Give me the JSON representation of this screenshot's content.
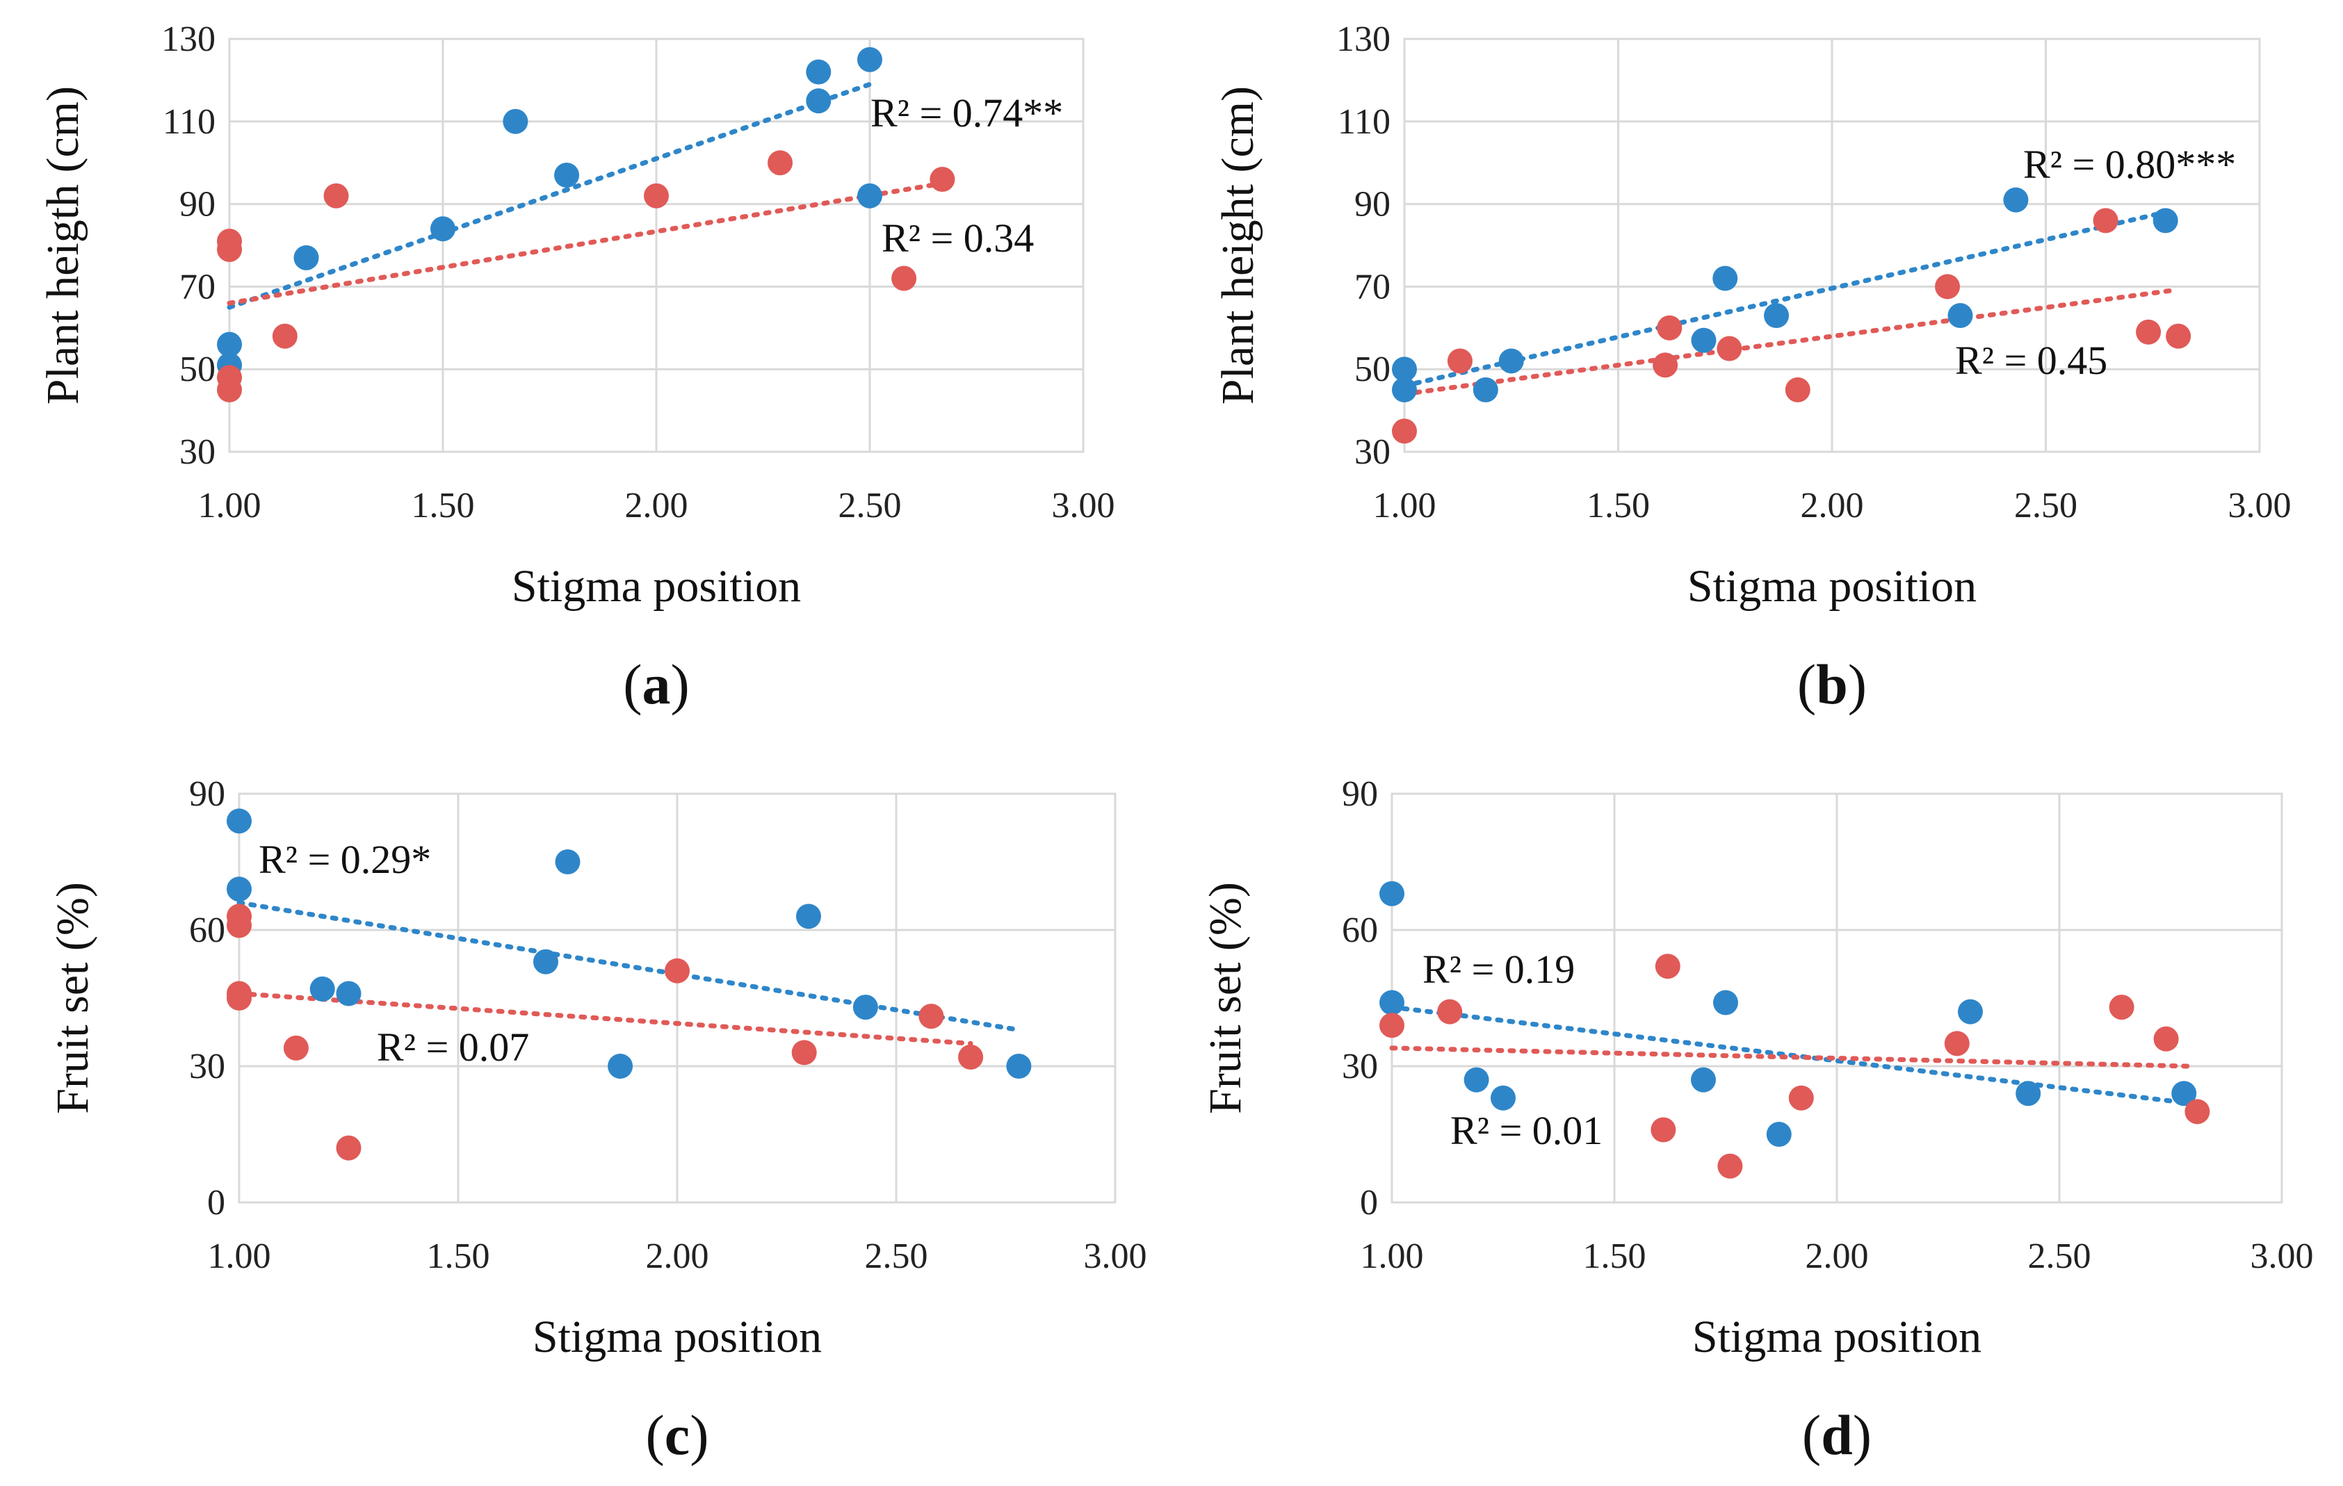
{
  "colors": {
    "blue": "#2e86c9",
    "red": "#e05a57"
  },
  "chart_data": [
    {
      "id": "a",
      "type": "scatter",
      "panel_label": "a",
      "xlabel": "Stigma position",
      "ylabel": "Plant heigth (cm)",
      "xlim": [
        1.0,
        3.0
      ],
      "ylim": [
        30,
        130
      ],
      "xticks": [
        "1.00",
        "1.50",
        "2.00",
        "2.50",
        "3.00"
      ],
      "yticks": [
        "30",
        "50",
        "70",
        "90",
        "110",
        "130"
      ],
      "grid": true,
      "series": [
        {
          "name": "blue",
          "color": "#2e86c9",
          "points": [
            [
              1.0,
              56
            ],
            [
              1.0,
              51
            ],
            [
              1.18,
              77
            ],
            [
              1.5,
              84
            ],
            [
              1.67,
              110
            ],
            [
              1.79,
              97
            ],
            [
              2.38,
              122
            ],
            [
              2.38,
              115
            ],
            [
              2.5,
              125
            ],
            [
              2.5,
              92
            ]
          ],
          "trend": [
            [
              1.0,
              65
            ],
            [
              2.5,
              119
            ]
          ],
          "r2_label": "R² = 0.74**"
        },
        {
          "name": "red",
          "color": "#e05a57",
          "points": [
            [
              1.0,
              81
            ],
            [
              1.0,
              79
            ],
            [
              1.0,
              48
            ],
            [
              1.0,
              45
            ],
            [
              1.13,
              58
            ],
            [
              1.25,
              92
            ],
            [
              2.0,
              92
            ],
            [
              2.29,
              100
            ],
            [
              2.58,
              72
            ],
            [
              2.67,
              96
            ]
          ],
          "trend": [
            [
              1.0,
              66
            ],
            [
              2.67,
              95
            ]
          ],
          "r2_label": "R² = 0.34"
        }
      ]
    },
    {
      "id": "b",
      "type": "scatter",
      "panel_label": "b",
      "xlabel": "Stigma position",
      "ylabel": "Plant height (cm)",
      "xlim": [
        1.0,
        3.0
      ],
      "ylim": [
        30,
        130
      ],
      "xticks": [
        "1.00",
        "1.50",
        "2.00",
        "2.50",
        "3.00"
      ],
      "yticks": [
        "30",
        "50",
        "70",
        "90",
        "110",
        "130"
      ],
      "grid": true,
      "series": [
        {
          "name": "blue",
          "color": "#2e86c9",
          "points": [
            [
              1.0,
              50
            ],
            [
              1.0,
              45
            ],
            [
              1.19,
              45
            ],
            [
              1.25,
              52
            ],
            [
              1.7,
              57
            ],
            [
              1.75,
              72
            ],
            [
              1.87,
              63
            ],
            [
              2.3,
              63
            ],
            [
              2.43,
              91
            ],
            [
              2.78,
              86
            ]
          ],
          "trend": [
            [
              1.0,
              46
            ],
            [
              2.78,
              88
            ]
          ],
          "r2_label": "R² = 0.80***"
        },
        {
          "name": "red",
          "color": "#e05a57",
          "points": [
            [
              1.0,
              35
            ],
            [
              1.13,
              52
            ],
            [
              1.61,
              51
            ],
            [
              1.62,
              60
            ],
            [
              1.76,
              55
            ],
            [
              1.92,
              45
            ],
            [
              2.27,
              70
            ],
            [
              2.64,
              86
            ],
            [
              2.74,
              59
            ],
            [
              2.81,
              58
            ]
          ],
          "trend": [
            [
              1.0,
              44
            ],
            [
              2.79,
              69
            ]
          ],
          "r2_label": "R² = 0.45"
        }
      ]
    },
    {
      "id": "c",
      "type": "scatter",
      "panel_label": "c",
      "xlabel": "Stigma position",
      "ylabel": "Fruit set (%)",
      "xlim": [
        1.0,
        3.0
      ],
      "ylim": [
        0,
        90
      ],
      "xticks": [
        "1.00",
        "1.50",
        "2.00",
        "2.50",
        "3.00"
      ],
      "yticks": [
        "0",
        "30",
        "60",
        "90"
      ],
      "grid": true,
      "series": [
        {
          "name": "blue",
          "color": "#2e86c9",
          "points": [
            [
              1.0,
              84
            ],
            [
              1.0,
              69
            ],
            [
              1.19,
              47
            ],
            [
              1.25,
              46
            ],
            [
              1.7,
              53
            ],
            [
              1.75,
              75
            ],
            [
              1.87,
              30
            ],
            [
              2.3,
              63
            ],
            [
              2.43,
              43
            ],
            [
              2.78,
              30
            ]
          ],
          "trend": [
            [
              1.0,
              66
            ],
            [
              2.78,
              38
            ]
          ],
          "r2_label": "R² = 0.29*"
        },
        {
          "name": "red",
          "color": "#e05a57",
          "points": [
            [
              1.0,
              63
            ],
            [
              1.0,
              61
            ],
            [
              1.0,
              46
            ],
            [
              1.0,
              45
            ],
            [
              1.13,
              34
            ],
            [
              1.25,
              12
            ],
            [
              2.0,
              51
            ],
            [
              2.29,
              33
            ],
            [
              2.58,
              41
            ],
            [
              2.67,
              32
            ]
          ],
          "trend": [
            [
              1.0,
              46
            ],
            [
              2.67,
              35
            ]
          ],
          "r2_label": "R² = 0.07"
        }
      ]
    },
    {
      "id": "d",
      "type": "scatter",
      "panel_label": "d",
      "xlabel": "Stigma position",
      "ylabel": "Fruit set (%)",
      "xlim": [
        1.0,
        3.0
      ],
      "ylim": [
        0,
        90
      ],
      "xticks": [
        "1.00",
        "1.50",
        "2.00",
        "2.50",
        "3.00"
      ],
      "yticks": [
        "0",
        "30",
        "60",
        "90"
      ],
      "grid": true,
      "series": [
        {
          "name": "blue",
          "color": "#2e86c9",
          "points": [
            [
              1.0,
              68
            ],
            [
              1.0,
              44
            ],
            [
              1.19,
              27
            ],
            [
              1.25,
              23
            ],
            [
              1.7,
              27
            ],
            [
              1.75,
              44
            ],
            [
              1.87,
              15
            ],
            [
              2.3,
              42
            ],
            [
              2.43,
              24
            ],
            [
              2.78,
              24
            ]
          ],
          "trend": [
            [
              1.0,
              43
            ],
            [
              2.78,
              22
            ]
          ],
          "r2_label": "R² = 0.19"
        },
        {
          "name": "red",
          "color": "#e05a57",
          "points": [
            [
              1.0,
              39
            ],
            [
              1.13,
              42
            ],
            [
              1.61,
              16
            ],
            [
              1.62,
              52
            ],
            [
              1.76,
              8
            ],
            [
              1.92,
              23
            ],
            [
              2.27,
              35
            ],
            [
              2.64,
              43
            ],
            [
              2.74,
              36
            ],
            [
              2.81,
              20
            ]
          ],
          "trend": [
            [
              1.0,
              34
            ],
            [
              2.79,
              30
            ]
          ],
          "r2_label": "R² = 0.01"
        }
      ]
    }
  ]
}
